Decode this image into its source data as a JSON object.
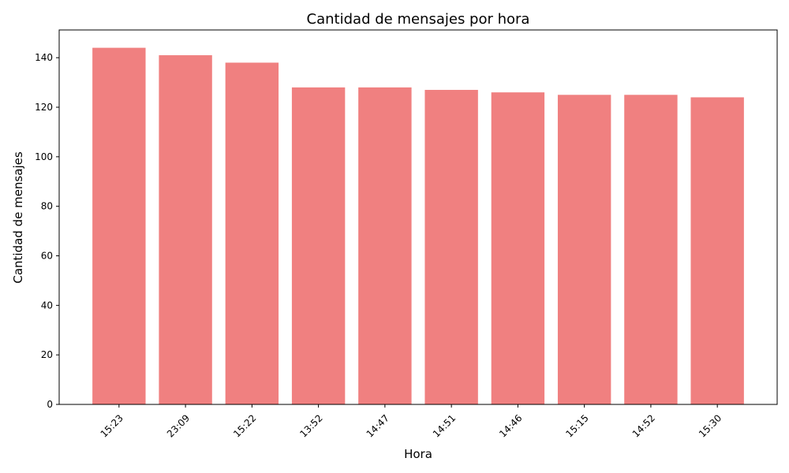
{
  "chart_data": {
    "type": "bar",
    "title": "Cantidad de mensajes por hora",
    "xlabel": "Hora",
    "ylabel": "Cantidad de mensajes",
    "categories": [
      "15:23",
      "23:09",
      "15:22",
      "13:52",
      "14:47",
      "14:51",
      "14:46",
      "15:15",
      "14:52",
      "15:30"
    ],
    "values": [
      144,
      141,
      138,
      128,
      128,
      127,
      126,
      125,
      125,
      124
    ],
    "ylim": [
      0,
      151.2
    ],
    "yticks": [
      0,
      20,
      40,
      60,
      80,
      100,
      120,
      140
    ],
    "xtick_rotation": 45,
    "grid": false,
    "bar_color": "#f08080"
  }
}
